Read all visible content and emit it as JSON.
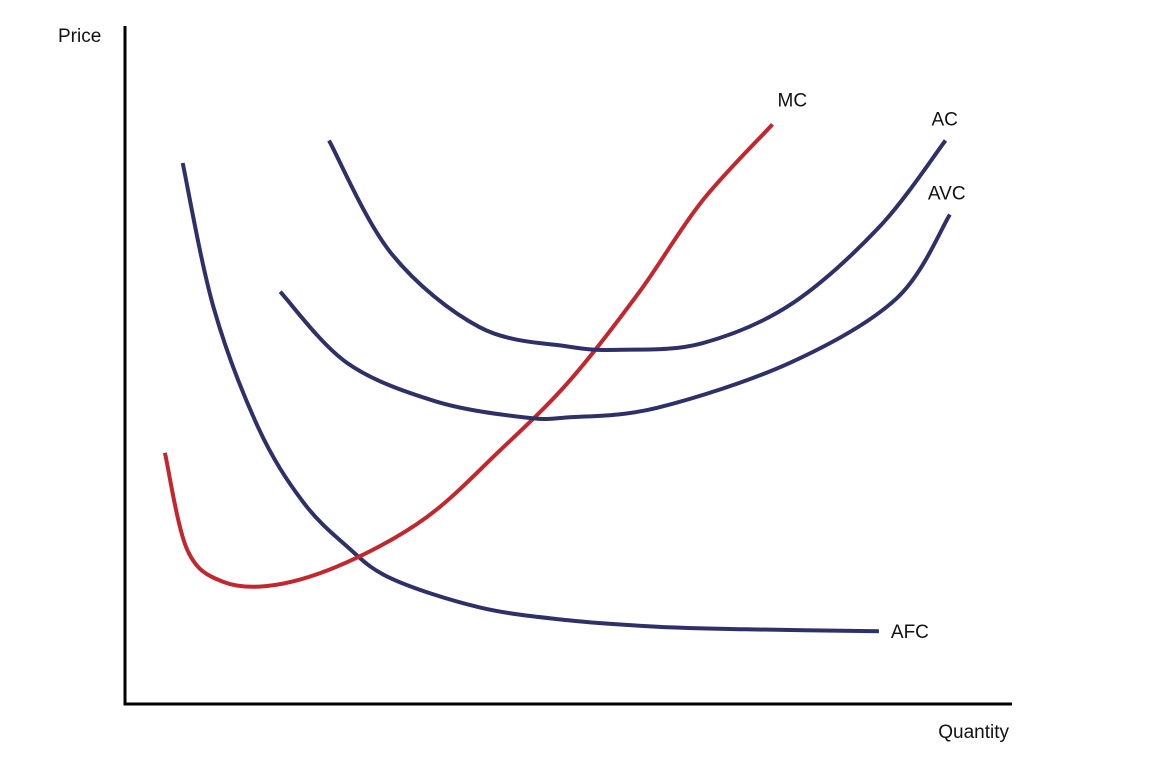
{
  "chart_data": {
    "type": "line",
    "title": "",
    "xlabel": "Quantity",
    "ylabel": "Price",
    "xlim": [
      0,
      10
    ],
    "ylim": [
      0,
      10
    ],
    "grid": false,
    "legend": "none",
    "series": [
      {
        "name": "AFC",
        "color": "#2e3168",
        "points": [
          [
            0.65,
            8.4
          ],
          [
            1.0,
            6.15
          ],
          [
            1.5,
            4.3
          ],
          [
            2.0,
            3.15
          ],
          [
            2.5,
            2.45
          ],
          [
            3.0,
            1.95
          ],
          [
            4.0,
            1.5
          ],
          [
            5.0,
            1.3
          ],
          [
            6.0,
            1.2
          ],
          [
            7.0,
            1.16
          ],
          [
            8.5,
            1.13
          ]
        ]
      },
      {
        "name": "MC",
        "color": "#c1272d",
        "points": [
          [
            0.45,
            3.9
          ],
          [
            0.7,
            2.4
          ],
          [
            1.1,
            1.9
          ],
          [
            1.7,
            1.85
          ],
          [
            2.5,
            2.2
          ],
          [
            3.4,
            2.9
          ],
          [
            4.2,
            3.9
          ],
          [
            5.0,
            5.0
          ],
          [
            5.8,
            6.4
          ],
          [
            6.5,
            7.8
          ],
          [
            7.3,
            9.0
          ]
        ]
      },
      {
        "name": "AC",
        "color": "#2e3168",
        "points": [
          [
            2.3,
            8.75
          ],
          [
            3.0,
            7.0
          ],
          [
            4.0,
            5.85
          ],
          [
            5.0,
            5.55
          ],
          [
            5.6,
            5.5
          ],
          [
            6.5,
            5.6
          ],
          [
            7.5,
            6.2
          ],
          [
            8.5,
            7.4
          ],
          [
            9.25,
            8.75
          ]
        ]
      },
      {
        "name": "AVC",
        "color": "#2e3168",
        "points": [
          [
            1.75,
            6.4
          ],
          [
            2.5,
            5.3
          ],
          [
            3.5,
            4.7
          ],
          [
            4.5,
            4.45
          ],
          [
            5.0,
            4.45
          ],
          [
            6.0,
            4.6
          ],
          [
            7.5,
            5.3
          ],
          [
            8.7,
            6.3
          ],
          [
            9.3,
            7.6
          ]
        ]
      }
    ]
  }
}
